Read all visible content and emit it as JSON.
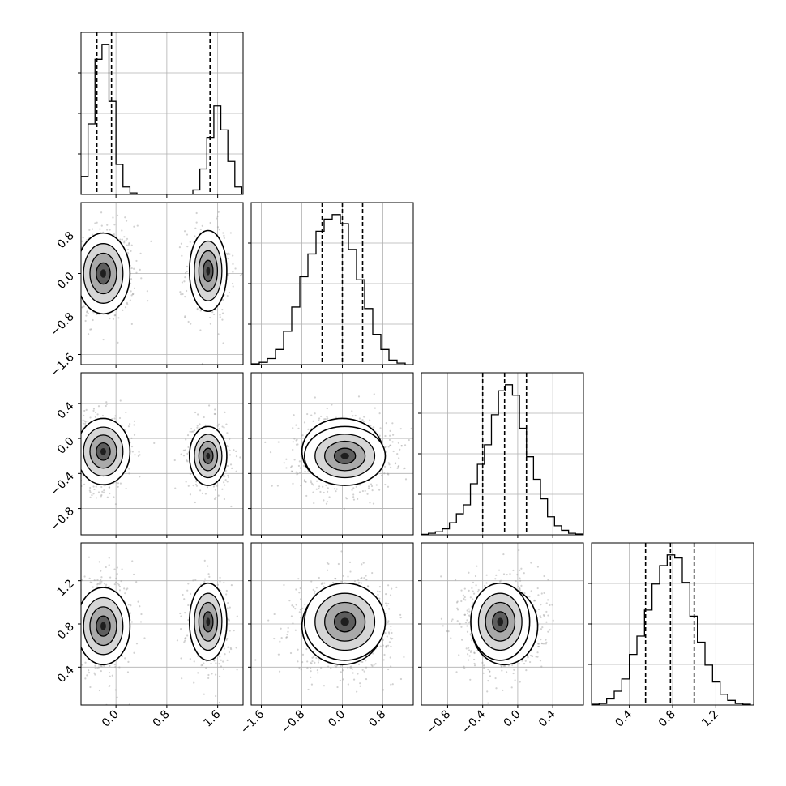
{
  "chart_data": {
    "type": "corner",
    "ndim": 4,
    "grid": true,
    "grid_color": "#b0b0b0",
    "line_color": "#000000",
    "quantile_style": "dashed",
    "parameters": [
      {
        "range": [
          -0.55,
          2.0
        ],
        "ticks": [
          0.0,
          0.8,
          1.6
        ],
        "tick_labels": [
          "0.0",
          "0.8",
          "1.6"
        ],
        "quantiles": [
          -0.3,
          -0.07,
          1.48
        ],
        "hist": {
          "edges": [
            -0.55,
            -0.44,
            -0.33,
            -0.22,
            -0.11,
            0.0,
            0.11,
            0.22,
            0.33,
            0.44,
            0.55,
            0.66,
            0.77,
            0.88,
            0.99,
            1.1,
            1.21,
            1.32,
            1.43,
            1.54,
            1.65,
            1.76,
            1.87,
            1.98
          ],
          "counts": [
            0.12,
            0.47,
            0.9,
            1.0,
            0.62,
            0.2,
            0.05,
            0.01,
            0.0,
            0.0,
            0.0,
            0.0,
            0.0,
            0.0,
            0.0,
            0.0,
            0.03,
            0.17,
            0.38,
            0.59,
            0.43,
            0.22,
            0.05
          ]
        },
        "clusters": [
          {
            "mean": -0.2,
            "sd": 0.2,
            "weight": 0.62
          },
          {
            "mean": 1.45,
            "sd": 0.14,
            "weight": 0.38
          }
        ]
      },
      {
        "range": [
          -1.8,
          1.4
        ],
        "ticks": [
          -1.6,
          -0.8,
          0.0,
          0.8
        ],
        "tick_labels": [
          "−1.6",
          "−0.8",
          "0.0",
          "0.8"
        ],
        "quantiles": [
          -0.4,
          0.0,
          0.4
        ],
        "hist": {
          "edges": [
            -1.8,
            -1.64,
            -1.48,
            -1.32,
            -1.16,
            -1.0,
            -0.84,
            -0.68,
            -0.52,
            -0.36,
            -0.2,
            -0.04,
            0.12,
            0.28,
            0.44,
            0.6,
            0.76,
            0.92,
            1.08,
            1.24
          ],
          "counts": [
            0.005,
            0.015,
            0.04,
            0.1,
            0.22,
            0.38,
            0.58,
            0.73,
            0.88,
            0.96,
            0.99,
            0.93,
            0.76,
            0.56,
            0.37,
            0.2,
            0.1,
            0.03,
            0.01
          ]
        },
        "clusters": [
          {
            "mean": 0.0,
            "sd": 0.38,
            "weight": 0.62
          },
          {
            "mean": 0.05,
            "sd": 0.38,
            "weight": 0.38
          }
        ]
      },
      {
        "range": [
          -1.1,
          0.75
        ],
        "ticks": [
          -0.8,
          -0.4,
          0.0,
          0.4
        ],
        "tick_labels": [
          "−0.8",
          "−0.4",
          "0.0",
          "0.4"
        ],
        "quantiles": [
          -0.4,
          -0.15,
          0.1
        ],
        "hist": {
          "edges": [
            -1.1,
            -1.02,
            -0.94,
            -0.86,
            -0.78,
            -0.7,
            -0.62,
            -0.54,
            -0.46,
            -0.38,
            -0.3,
            -0.22,
            -0.14,
            -0.06,
            0.02,
            0.1,
            0.18,
            0.26,
            0.34,
            0.42,
            0.5,
            0.58,
            0.66,
            0.74
          ],
          "counts": [
            0.003,
            0.01,
            0.02,
            0.04,
            0.08,
            0.14,
            0.2,
            0.34,
            0.47,
            0.6,
            0.8,
            0.96,
            1.0,
            0.93,
            0.71,
            0.52,
            0.37,
            0.24,
            0.12,
            0.06,
            0.03,
            0.01,
            0.005
          ]
        },
        "clusters": [
          {
            "mean": -0.15,
            "sd": 0.18,
            "weight": 0.62
          },
          {
            "mean": -0.2,
            "sd": 0.16,
            "weight": 0.38
          }
        ]
      },
      {
        "range": [
          0.05,
          1.55
        ],
        "ticks": [
          0.4,
          0.8,
          1.2
        ],
        "tick_labels": [
          "0.4",
          "0.8",
          "1.2"
        ],
        "quantiles": [
          0.55,
          0.78,
          1.0
        ],
        "hist": {
          "edges": [
            0.05,
            0.12,
            0.19,
            0.26,
            0.33,
            0.4,
            0.47,
            0.54,
            0.61,
            0.68,
            0.75,
            0.82,
            0.89,
            0.96,
            1.03,
            1.1,
            1.17,
            1.24,
            1.31,
            1.38,
            1.45,
            1.52
          ],
          "counts": [
            0.005,
            0.01,
            0.04,
            0.09,
            0.17,
            0.33,
            0.45,
            0.62,
            0.79,
            0.91,
            0.98,
            0.96,
            0.8,
            0.58,
            0.41,
            0.26,
            0.15,
            0.07,
            0.03,
            0.01,
            0.005
          ]
        },
        "clusters": [
          {
            "mean": 0.78,
            "sd": 0.17,
            "weight": 0.62
          },
          {
            "mean": 0.82,
            "sd": 0.17,
            "weight": 0.38
          }
        ]
      }
    ]
  }
}
